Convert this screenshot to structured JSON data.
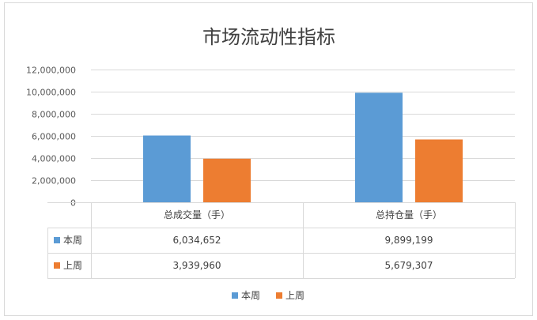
{
  "chart_data": {
    "type": "bar",
    "title": "市场流动性指标",
    "categories": [
      "总成交量（手）",
      "总持仓量（手）"
    ],
    "series": [
      {
        "name": "本周",
        "color": "#5B9BD5",
        "values": [
          6034652,
          9899199
        ],
        "display": [
          "6,034,652",
          "9,899,199"
        ]
      },
      {
        "name": "上周",
        "color": "#ED7D31",
        "values": [
          3939960,
          5679307
        ],
        "display": [
          "3,939,960",
          "5,679,307"
        ]
      }
    ],
    "ylim": [
      0,
      12000000
    ],
    "yticks": [
      "0",
      "2,000,000",
      "4,000,000",
      "6,000,000",
      "8,000,000",
      "10,000,000",
      "12,000,000"
    ],
    "ytick_values": [
      0,
      2000000,
      4000000,
      6000000,
      8000000,
      10000000,
      12000000
    ],
    "grid": true,
    "legend": "bottom",
    "data_table": true
  }
}
